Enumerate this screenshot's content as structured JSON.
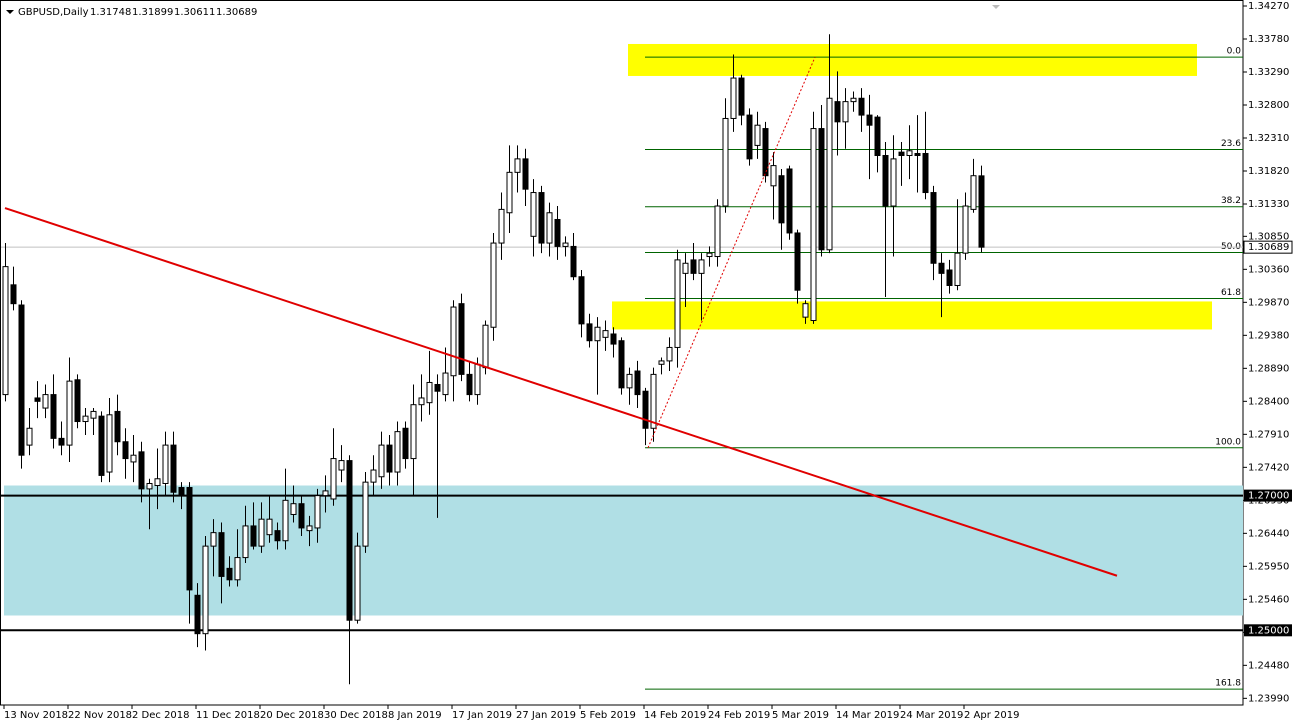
{
  "chart_data": {
    "type": "candlestick",
    "title": "GBPUSD,Daily",
    "categories": [
      "13 Nov 2018",
      null,
      null,
      null,
      null,
      null,
      null,
      null,
      "22 Nov 2018",
      null,
      null,
      null,
      null,
      null,
      null,
      null,
      "2 Dec 2018",
      null,
      null,
      null,
      null,
      null,
      null,
      null,
      "11 Dec 2018",
      null,
      null,
      null,
      null,
      null,
      null,
      null,
      "20 Dec 2018",
      null,
      null,
      null,
      null,
      null,
      null,
      null,
      "30 Dec 2018",
      null,
      null,
      null,
      null,
      null,
      null,
      null,
      "8 Jan 2019",
      null,
      null,
      null,
      null,
      null,
      null,
      null,
      "17 Jan 2019",
      null,
      null,
      null,
      null,
      null,
      null,
      null,
      "27 Jan 2019",
      null,
      null,
      null,
      null,
      null,
      null,
      null,
      "5 Feb 2019",
      null,
      null,
      null,
      null,
      null,
      null,
      null,
      "14 Feb 2019",
      null,
      null,
      null,
      null,
      null,
      null,
      null,
      "24 Feb 2019",
      null,
      null,
      null,
      null,
      null,
      null,
      null,
      "5 Mar 2019",
      null,
      null,
      null,
      null,
      null,
      null,
      null,
      "14 Mar 2019",
      null,
      null,
      null,
      null,
      null,
      null,
      null,
      "24 Mar 2019",
      null,
      null,
      null,
      null,
      null,
      null,
      null,
      "2 Apr 2019",
      null,
      null
    ],
    "open": [
      1.285,
      1.3013,
      1.2983,
      1.2775,
      1.2845,
      1.283,
      1.285,
      1.2785,
      1.2775,
      1.2872,
      1.281,
      1.2815,
      1.2818,
      1.2735,
      1.2825,
      1.278,
      1.275,
      1.2765,
      1.271,
      1.2715,
      1.2718,
      1.2775,
      1.2712,
      1.2712,
      1.2552,
      1.2495,
      1.2625,
      1.2645,
      1.2592,
      1.2575,
      1.2608,
      1.2655,
      1.2625,
      1.2642,
      1.2648,
      1.2633,
      1.2672,
      1.2688,
      1.2648,
      1.2652,
      1.27,
      1.2695,
      1.2738,
      1.2752,
      1.2515,
      1.2625,
      1.272,
      1.2728,
      1.2775,
      1.2735,
      1.28,
      1.2755,
      1.2835,
      1.2838,
      1.2865,
      1.285,
      1.2878,
      1.2985,
      1.288,
      1.285,
      1.289,
      1.295,
      1.3075,
      1.312,
      1.318,
      1.32,
      1.3085,
      1.315,
      1.3075,
      1.311,
      1.307,
      1.307,
      1.3025,
      1.2955,
      1.293,
      1.2935,
      1.294,
      1.293,
      1.286,
      1.2885,
      1.2855,
      1.28,
      1.2895,
      1.29,
      1.292,
      1.303,
      1.305,
      1.303,
      1.3055,
      1.3055,
      1.313,
      1.326,
      1.332,
      1.3265,
      1.322,
      1.3245,
      1.316,
      1.3175,
      1.3185,
      1.309,
      1.2965,
      1.296,
      1.3245,
      1.3065,
      1.3285,
      1.3255,
      1.3285,
      1.329,
      1.3265,
      1.3262,
      1.3205,
      1.313,
      1.321,
      1.3205,
      1.3208,
      1.3208,
      1.315,
      1.3045,
      1.3035,
      1.3012,
      1.306,
      1.3125,
      1.31748
    ],
    "high": [
      1.3075,
      1.304,
      1.299,
      1.283,
      1.287,
      1.2865,
      1.288,
      1.281,
      1.2905,
      1.288,
      1.283,
      1.283,
      1.2825,
      1.2845,
      1.285,
      1.28,
      1.279,
      1.278,
      1.2725,
      1.277,
      1.2795,
      1.2795,
      1.272,
      1.272,
      1.257,
      1.264,
      1.2665,
      1.266,
      1.261,
      1.265,
      1.2685,
      1.269,
      1.269,
      1.27,
      1.266,
      1.274,
      1.2715,
      1.27,
      1.267,
      1.271,
      1.273,
      1.28,
      1.2775,
      1.276,
      1.2645,
      1.2735,
      1.276,
      1.2795,
      1.279,
      1.281,
      1.281,
      1.2865,
      1.288,
      1.2915,
      1.288,
      1.292,
      1.299,
      1.3,
      1.29,
      1.2905,
      1.296,
      1.309,
      1.315,
      1.322,
      1.322,
      1.3215,
      1.317,
      1.316,
      1.3135,
      1.313,
      1.3085,
      1.309,
      1.3035,
      1.297,
      1.2965,
      1.296,
      1.295,
      1.2935,
      1.289,
      1.29,
      1.286,
      1.289,
      1.2905,
      1.2935,
      1.3065,
      1.306,
      1.3075,
      1.306,
      1.307,
      1.314,
      1.329,
      1.3355,
      1.3325,
      1.3275,
      1.327,
      1.3255,
      1.321,
      1.3185,
      1.319,
      1.3095,
      1.299,
      1.327,
      1.328,
      1.3385,
      1.333,
      1.3305,
      1.33,
      1.3305,
      1.3295,
      1.3265,
      1.3225,
      1.3235,
      1.3225,
      1.325,
      1.3265,
      1.327,
      1.316,
      1.306,
      1.305,
      1.314,
      1.315,
      1.32,
      1.31899
    ],
    "low": [
      1.284,
      1.2975,
      1.274,
      1.276,
      1.2815,
      1.2815,
      1.277,
      1.276,
      1.275,
      1.28,
      1.279,
      1.279,
      1.272,
      1.272,
      1.276,
      1.2725,
      1.272,
      1.269,
      1.265,
      1.268,
      1.27,
      1.269,
      1.268,
      1.251,
      1.2475,
      1.247,
      1.258,
      1.254,
      1.2565,
      1.2565,
      1.26,
      1.262,
      1.2615,
      1.263,
      1.262,
      1.262,
      1.266,
      1.264,
      1.2625,
      1.263,
      1.2675,
      1.2685,
      1.272,
      1.242,
      1.251,
      1.2615,
      1.27,
      1.271,
      1.2715,
      1.2715,
      1.274,
      1.27,
      1.281,
      1.282,
      1.2667,
      1.284,
      1.284,
      1.287,
      1.284,
      1.2835,
      1.288,
      1.293,
      1.305,
      1.309,
      1.315,
      1.313,
      1.3055,
      1.306,
      1.3055,
      1.305,
      1.3055,
      1.302,
      1.2935,
      1.292,
      1.285,
      1.2915,
      1.2905,
      1.285,
      1.2835,
      1.283,
      1.2775,
      1.278,
      1.288,
      1.2885,
      1.289,
      1.298,
      1.302,
      1.296,
      1.304,
      1.304,
      1.312,
      1.324,
      1.325,
      1.319,
      1.32,
      1.3165,
      1.311,
      1.3065,
      1.308,
      1.2985,
      1.2955,
      1.2955,
      1.3055,
      1.306,
      1.3205,
      1.3215,
      1.327,
      1.324,
      1.317,
      1.318,
      1.2995,
      1.3055,
      1.316,
      1.317,
      1.315,
      1.314,
      1.302,
      1.2965,
      1.3,
      1.3005,
      1.305,
      1.312,
      1.30611
    ],
    "close": [
      1.304,
      1.2985,
      1.276,
      1.28,
      1.284,
      1.285,
      1.2785,
      1.2775,
      1.287,
      1.281,
      1.2818,
      1.2825,
      1.273,
      1.282,
      1.278,
      1.2755,
      1.276,
      1.271,
      1.2718,
      1.2725,
      1.2775,
      1.2705,
      1.27,
      1.256,
      1.2495,
      1.2625,
      1.2645,
      1.258,
      1.2575,
      1.2608,
      1.2655,
      1.2625,
      1.2665,
      1.2665,
      1.2633,
      1.2693,
      1.2688,
      1.2652,
      1.2655,
      1.27,
      1.2707,
      1.2755,
      1.2752,
      1.2515,
      1.2625,
      1.272,
      1.2738,
      1.2775,
      1.2735,
      1.2795,
      1.2755,
      1.2835,
      1.2845,
      1.2868,
      1.2855,
      1.2882,
      1.298,
      1.288,
      1.285,
      1.2895,
      1.2953,
      1.3075,
      1.3125,
      1.318,
      1.32,
      1.3155,
      1.315,
      1.3075,
      1.312,
      1.307,
      1.3075,
      1.3025,
      1.2955,
      1.293,
      1.295,
      1.2945,
      1.2925,
      1.286,
      1.288,
      1.285,
      1.28,
      1.288,
      1.29,
      1.292,
      1.305,
      1.3045,
      1.303,
      1.305,
      1.306,
      1.313,
      1.326,
      1.332,
      1.3265,
      1.32,
      1.325,
      1.3175,
      1.319,
      1.3105,
      1.309,
      1.3005,
      1.2985,
      1.3245,
      1.3065,
      1.329,
      1.3255,
      1.3285,
      1.329,
      1.3265,
      1.325,
      1.3205,
      1.313,
      1.32,
      1.3205,
      1.3212,
      1.3205,
      1.315,
      1.3045,
      1.303,
      1.3012,
      1.306,
      1.313,
      1.3175,
      1.30689
    ],
    "up_color": "#ffffff",
    "down_color": "#000000",
    "ylim": [
      1.23891,
      1.34359
    ],
    "yticks": [
      {
        "value": 1.3427,
        "label": "1.34270"
      },
      {
        "value": 1.3378,
        "label": "1.33780"
      },
      {
        "value": 1.3329,
        "label": "1.33290"
      },
      {
        "value": 1.328,
        "label": "1.32800"
      },
      {
        "value": 1.3231,
        "label": "1.32310"
      },
      {
        "value": 1.3182,
        "label": "1.31820"
      },
      {
        "value": 1.3133,
        "label": "1.31330"
      },
      {
        "value": 1.3085,
        "label": "1.30850"
      },
      {
        "value": 1.3036,
        "label": "1.30360"
      },
      {
        "value": 1.2987,
        "label": "1.29870"
      },
      {
        "value": 1.2938,
        "label": "1.29380"
      },
      {
        "value": 1.2889,
        "label": "1.28890"
      },
      {
        "value": 1.284,
        "label": "1.28400"
      },
      {
        "value": 1.2791,
        "label": "1.27910"
      },
      {
        "value": 1.2742,
        "label": "1.27420"
      },
      {
        "value": 1.2693,
        "label": "1.26930"
      },
      {
        "value": 1.2644,
        "label": "1.26440"
      },
      {
        "value": 1.2595,
        "label": "1.25950"
      },
      {
        "value": 1.2546,
        "label": "1.25460"
      },
      {
        "value": 1.2497,
        "label": "1.24970"
      },
      {
        "value": 1.2448,
        "label": "1.24480"
      },
      {
        "value": 1.2399,
        "label": "1.23990"
      }
    ],
    "horizontal_lines": [
      {
        "value": 1.27,
        "label": "1.27000"
      },
      {
        "value": 1.25,
        "label": "1.25000"
      }
    ],
    "zones": [
      {
        "low": 1.2522,
        "high": 1.2715,
        "color": "#b0dfe5"
      },
      {
        "low": 1.29467,
        "high": 1.29883,
        "color": "#ffff00"
      },
      {
        "low": 1.33231,
        "high": 1.33706,
        "color": "#ffff00"
      }
    ],
    "fibonacci": {
      "color": "#006400",
      "levels": [
        {
          "value": 1.3351,
          "label": "0.0"
        },
        {
          "value": 1.3214,
          "label": "23.6"
        },
        {
          "value": 1.3129,
          "label": "38.2"
        },
        {
          "value": 1.3061,
          "label": "50.0"
        },
        {
          "value": 1.29926,
          "label": "61.8"
        },
        {
          "value": 1.2771,
          "label": "100.0"
        },
        {
          "value": 1.24126,
          "label": "161.8"
        }
      ]
    },
    "trendline": {
      "start": 1.3127,
      "end": 1.2581,
      "color": "#e00000"
    }
  }
}
